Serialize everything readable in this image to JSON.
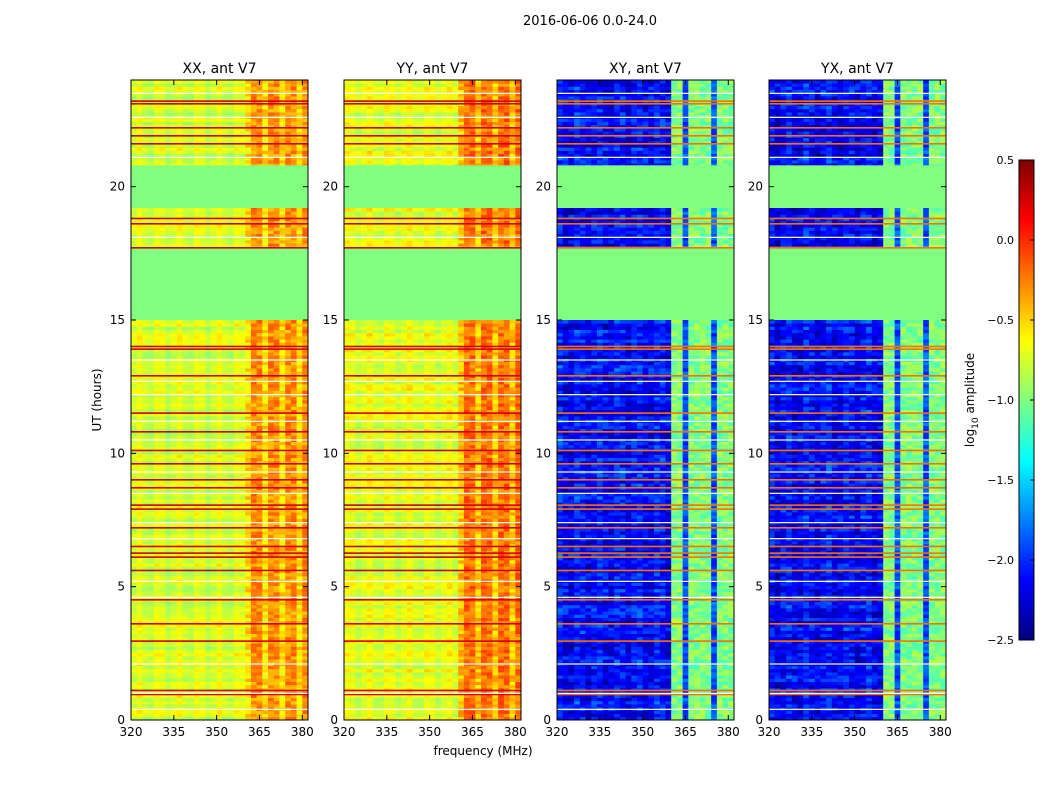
{
  "chart_data": {
    "type": "heatmap",
    "suptitle": "2016-06-06 0.0-24.0",
    "xlabel": "frequency (MHz)",
    "ylabel": "UT (hours)",
    "xlim": [
      320,
      382
    ],
    "ylim": [
      0,
      24
    ],
    "xticks": [
      "320",
      "335",
      "350",
      "365",
      "380"
    ],
    "yticks": [
      "0",
      "5",
      "10",
      "15",
      "20"
    ],
    "panels": [
      {
        "title": "XX, ant V7",
        "polarization": "XX",
        "antenna": "V7",
        "base_level": -0.75,
        "band_level": -0.3
      },
      {
        "title": "YY, ant V7",
        "polarization": "YY",
        "antenna": "V7",
        "base_level": -0.7,
        "band_level": -0.2
      },
      {
        "title": "XY, ant V7",
        "polarization": "XY",
        "antenna": "V7",
        "base_level": -2.1,
        "band_level": -1.0
      },
      {
        "title": "YX, ant V7",
        "polarization": "YX",
        "antenna": "V7",
        "base_level": -2.1,
        "band_level": -1.0
      }
    ],
    "no_data_ut_ranges": [
      [
        15.0,
        17.7
      ],
      [
        19.2,
        20.8
      ]
    ],
    "bright_band_mhz": [
      361,
      382
    ],
    "colorbar": {
      "label": "log10 amplitude",
      "label_main": "log",
      "label_sub": "10",
      "label_rest": " amplitude",
      "range": [
        -2.5,
        0.5
      ],
      "ticks": [
        "0.5",
        "0.0",
        "−0.5",
        "−1.0",
        "−1.5",
        "−2.0",
        "−2.5"
      ],
      "tick_values": [
        0.5,
        0.0,
        -0.5,
        -1.0,
        -1.5,
        -2.0,
        -2.5
      ],
      "colormap": "jet"
    }
  }
}
